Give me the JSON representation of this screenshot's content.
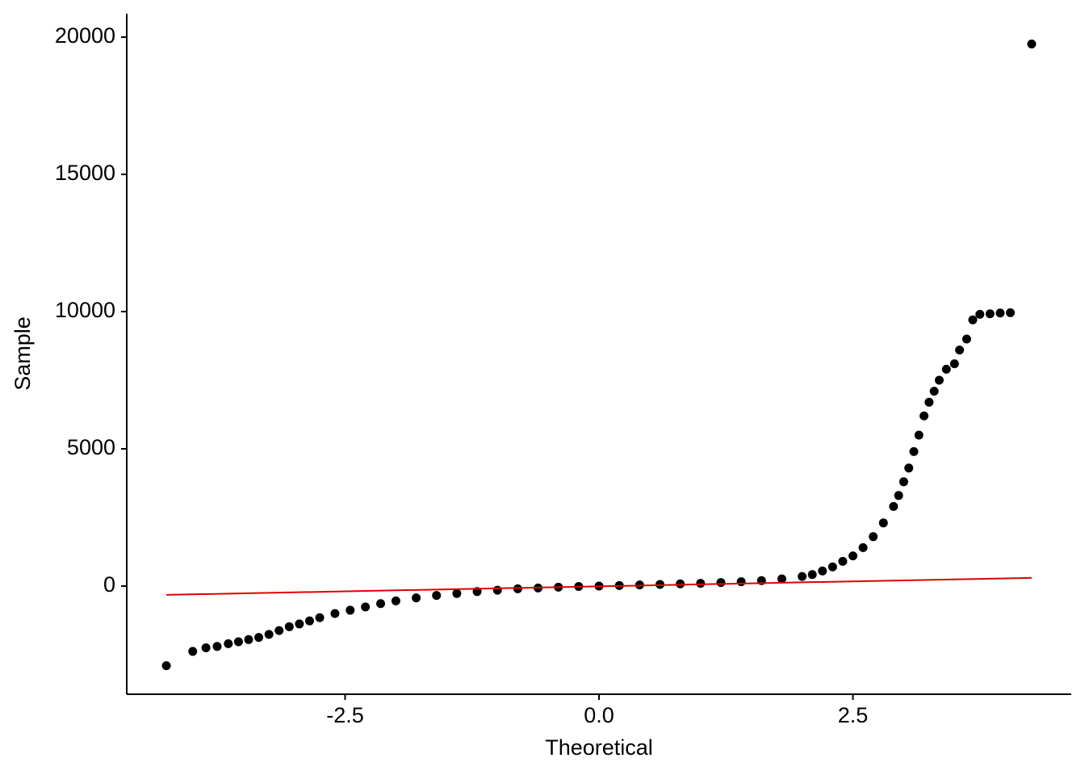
{
  "chart_data": {
    "type": "scatter",
    "xlabel": "Theoretical",
    "ylabel": "Sample",
    "xlim": [
      -4.65,
      4.65
    ],
    "ylim": [
      -3941,
      20853
    ],
    "xticks": [
      -2.5,
      {
        "value": 0,
        "label": "0.0"
      },
      2.5
    ],
    "yticks": [
      0,
      5000,
      10000,
      15000,
      20000
    ],
    "grid": false,
    "color": "#000000",
    "x": [
      -4.26,
      -4.0,
      -3.87,
      -3.76,
      -3.65,
      -3.55,
      -3.45,
      -3.35,
      -3.25,
      -3.15,
      -3.05,
      -2.95,
      -2.85,
      -2.75,
      -2.6,
      -2.45,
      -2.3,
      -2.15,
      -2.0,
      -1.8,
      -1.6,
      -1.4,
      -1.2,
      -1.0,
      -0.8,
      -0.6,
      -0.4,
      -0.2,
      0,
      0.2,
      0.4,
      0.6,
      0.8,
      1.0,
      1.2,
      1.4,
      1.6,
      1.8,
      2.0,
      2.1,
      2.2,
      2.3,
      2.4,
      2.5,
      2.6,
      2.7,
      2.8,
      2.9,
      2.95,
      3.0,
      3.05,
      3.1,
      3.15,
      3.2,
      3.25,
      3.3,
      3.35,
      3.42,
      3.5,
      3.55,
      3.62,
      3.68,
      3.75,
      3.85,
      3.95,
      4.05,
      4.26
    ],
    "values": [
      -2900,
      -2380,
      -2250,
      -2200,
      -2100,
      -2030,
      -1950,
      -1870,
      -1760,
      -1620,
      -1480,
      -1380,
      -1270,
      -1150,
      -1000,
      -880,
      -760,
      -640,
      -540,
      -430,
      -340,
      -270,
      -200,
      -150,
      -100,
      -70,
      -40,
      -15,
      0,
      20,
      40,
      60,
      80,
      100,
      130,
      160,
      200,
      260,
      350,
      420,
      550,
      700,
      900,
      1100,
      1400,
      1800,
      2300,
      2900,
      3300,
      3800,
      4300,
      4900,
      5500,
      6200,
      6700,
      7100,
      7500,
      7900,
      8100,
      8600,
      9000,
      9700,
      9900,
      9920,
      9950,
      9960,
      19750
    ],
    "reference_line": {
      "x": [
        -4.26,
        4.26
      ],
      "values": [
        -320,
        300
      ],
      "color": "#e00000"
    }
  }
}
